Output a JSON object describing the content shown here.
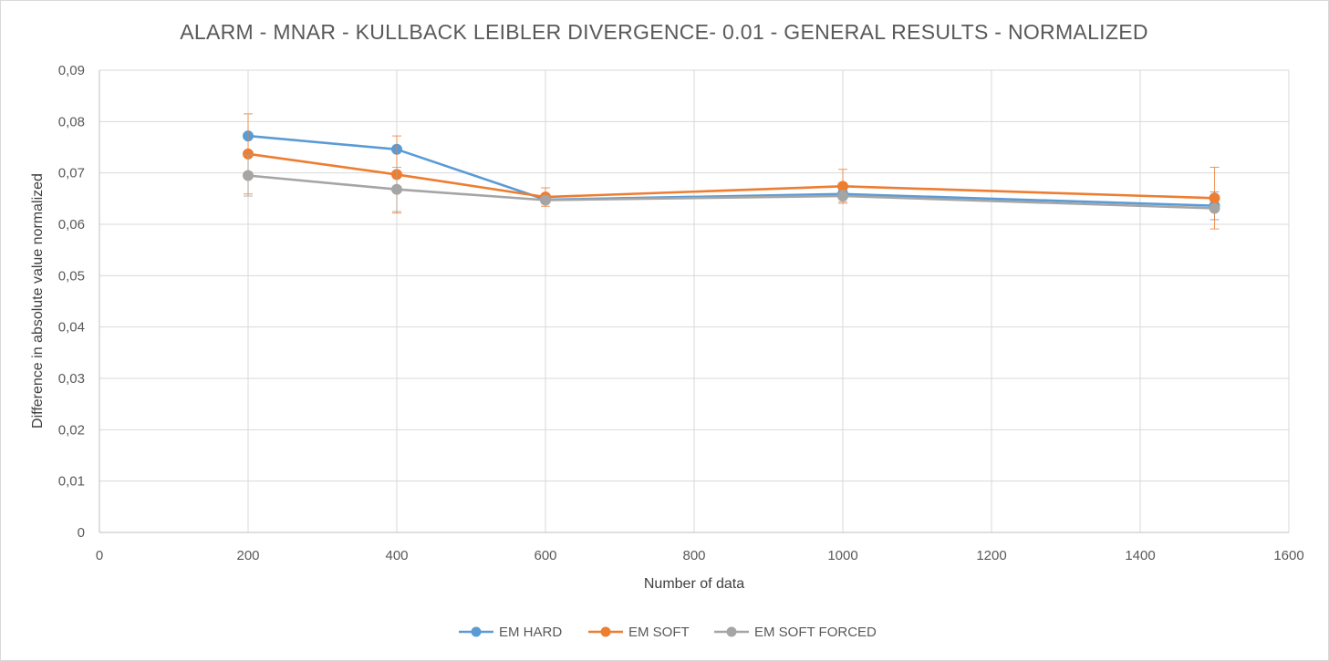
{
  "chart_data": {
    "type": "line",
    "title": "ALARM - MNAR - KULLBACK LEIBLER DIVERGENCE- 0.01 - GENERAL RESULTS - NORMALIZED",
    "xlabel": "Number of data",
    "ylabel": "Difference in absolute value normalized",
    "xlim": [
      0,
      1600
    ],
    "ylim": [
      0,
      0.09
    ],
    "x_ticks": [
      0,
      200,
      400,
      600,
      800,
      1000,
      1200,
      1400,
      1600
    ],
    "y_ticks": [
      0,
      0.01,
      0.02,
      0.03,
      0.04,
      0.05,
      0.06,
      0.07,
      0.08,
      0.09
    ],
    "y_tick_labels": [
      "0",
      "0,01",
      "0,02",
      "0,03",
      "0,04",
      "0,05",
      "0,06",
      "0,07",
      "0,08",
      "0,09"
    ],
    "grid": true,
    "legend_position": "bottom",
    "x": [
      200,
      400,
      600,
      1000,
      1500
    ],
    "series": [
      {
        "name": "EM HARD",
        "color": "#5b9bd5",
        "values": [
          0.0772,
          0.0746,
          0.0648,
          0.0659,
          0.0636
        ],
        "error": [
          0.0,
          0.0,
          0.0005,
          0.0008,
          0.0027
        ]
      },
      {
        "name": "EM SOFT",
        "color": "#ed7d31",
        "values": [
          0.0737,
          0.0697,
          0.0653,
          0.0674,
          0.0651
        ],
        "error": [
          0.0078,
          0.0075,
          0.0018,
          0.0033,
          0.006
        ]
      },
      {
        "name": "EM SOFT FORCED",
        "color": "#a5a5a5",
        "values": [
          0.0695,
          0.0668,
          0.0647,
          0.0655,
          0.0631
        ],
        "error": [
          0.004,
          0.0043,
          0.0003,
          0.0011,
          0.0004
        ]
      }
    ]
  }
}
